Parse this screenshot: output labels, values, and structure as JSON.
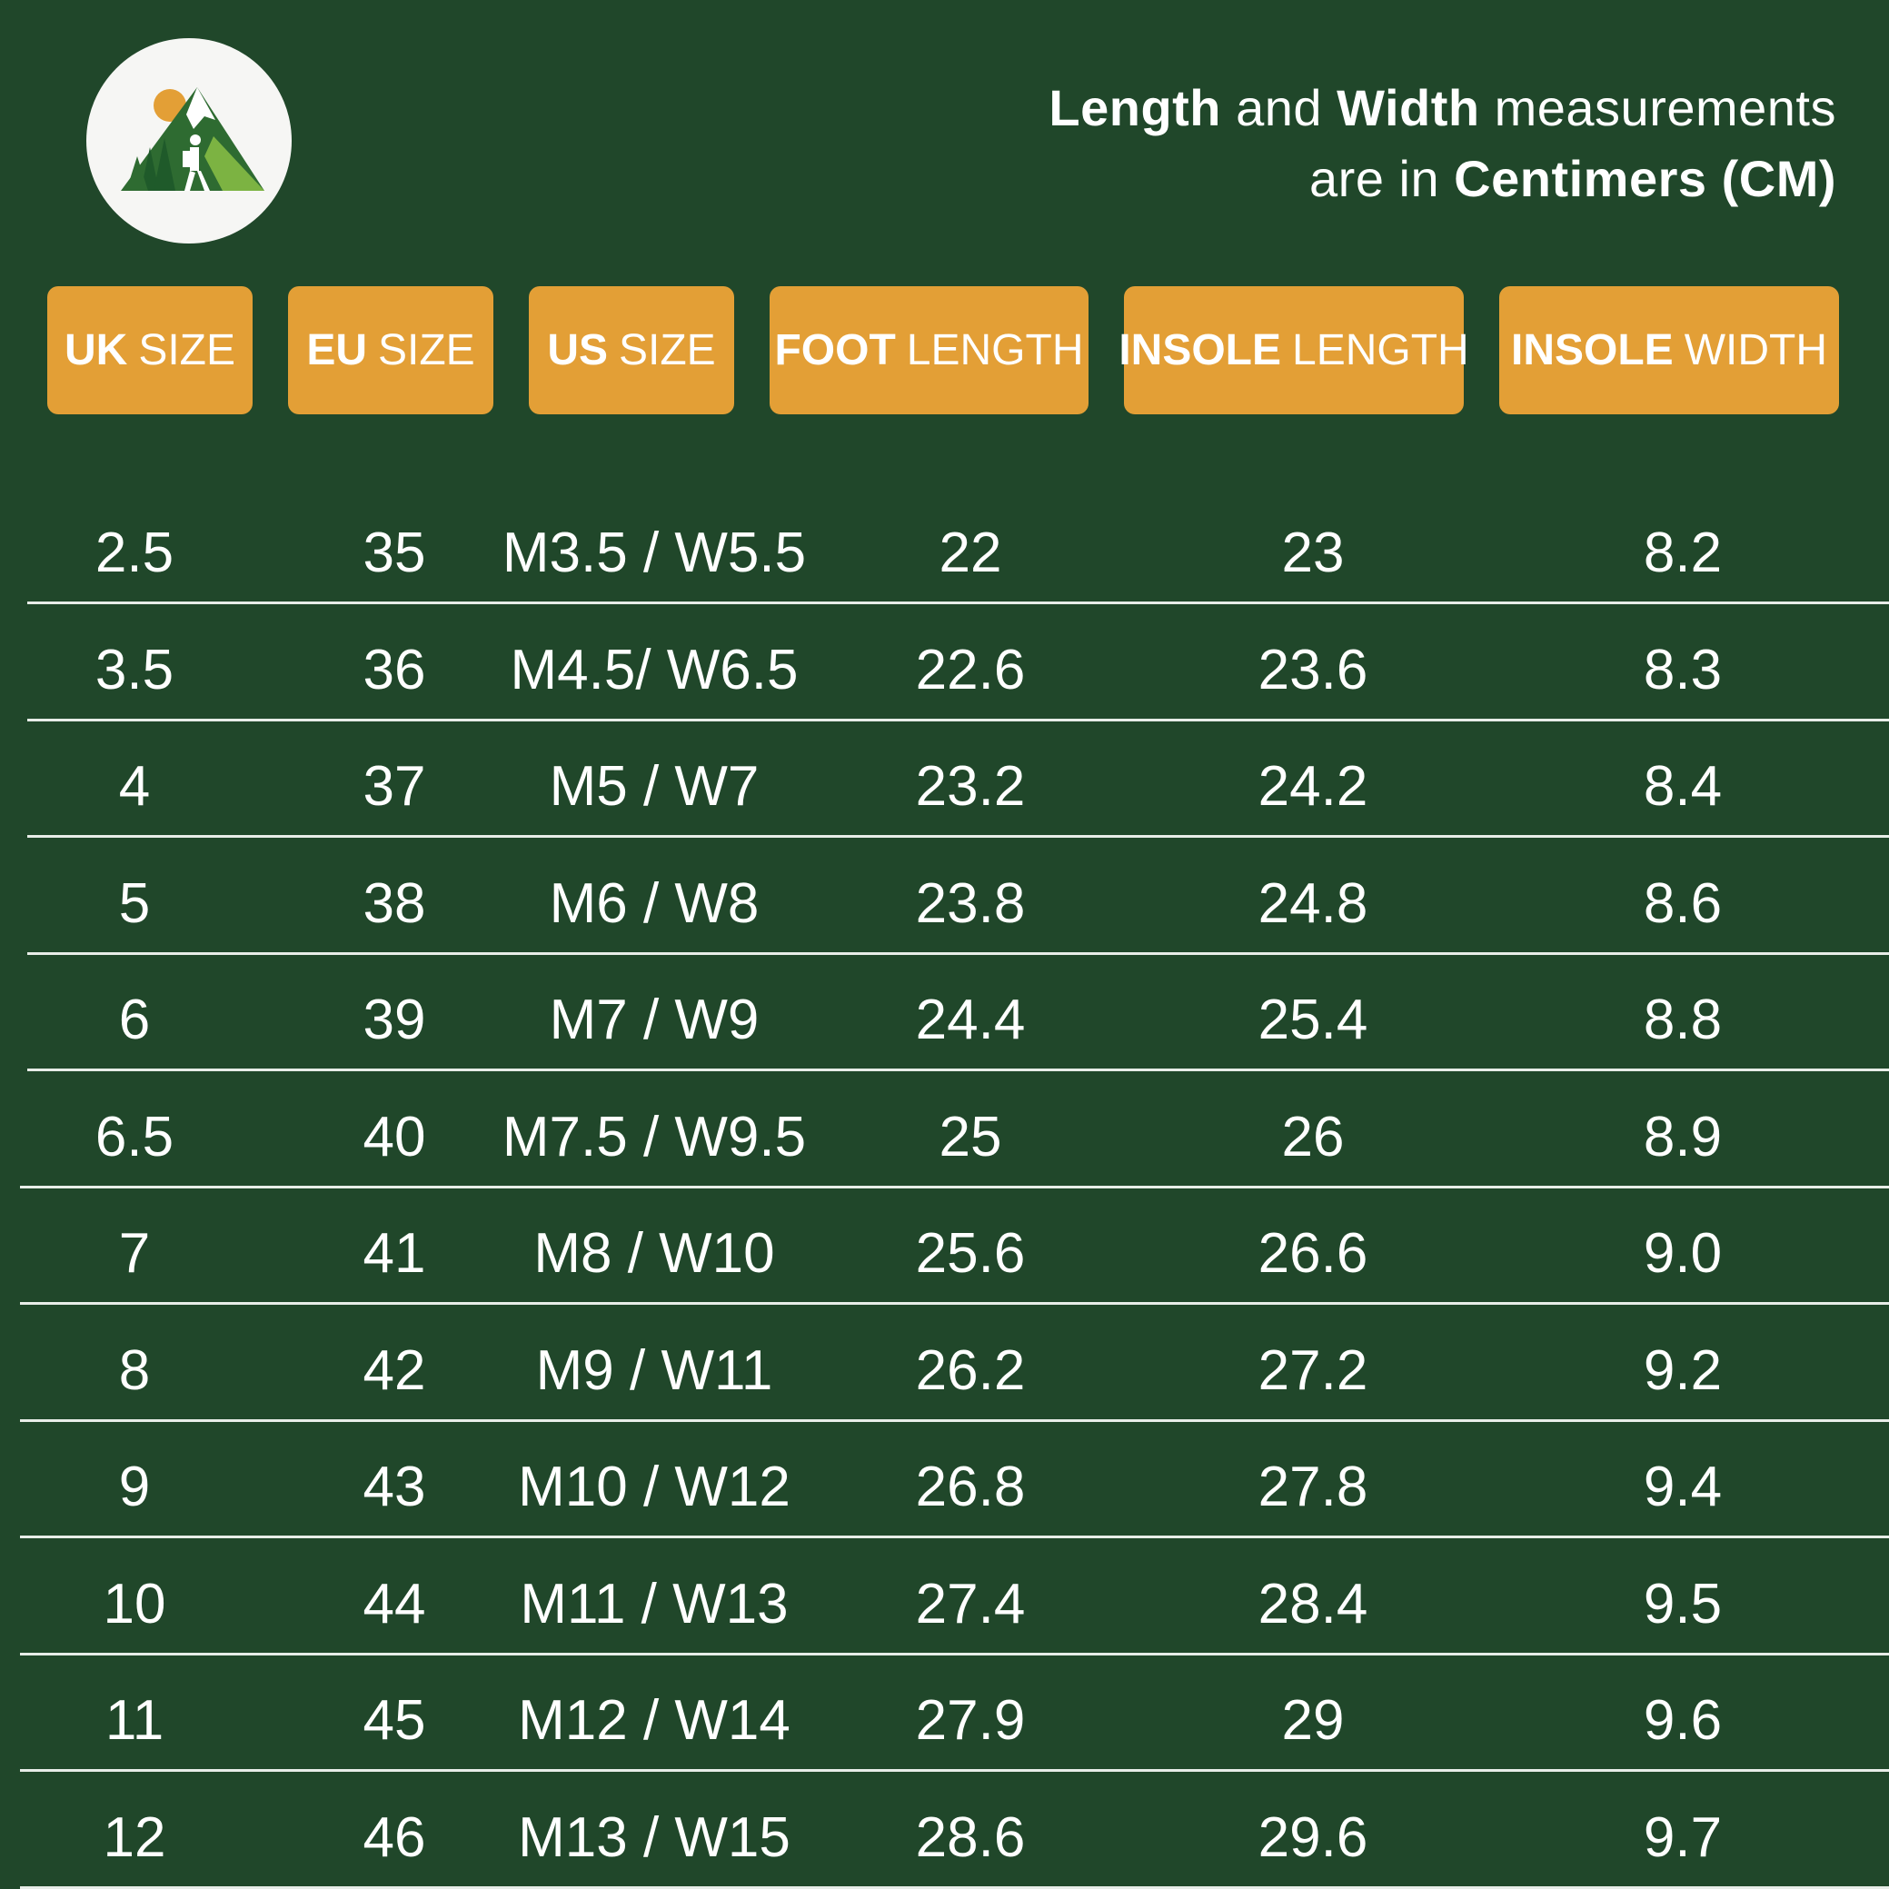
{
  "note": {
    "w1": "Length",
    "w2": " and ",
    "w3": "Width",
    "w4": " measurements",
    "w5": "are in ",
    "w6": "Centimers (CM)"
  },
  "headers": [
    {
      "bold": "UK",
      "rest": "SIZE"
    },
    {
      "bold": "EU",
      "rest": "SIZE"
    },
    {
      "bold": "US",
      "rest": "SIZE"
    },
    {
      "bold": "FOOT",
      "rest": "LENGTH"
    },
    {
      "bold": "INSOLE",
      "rest": "LENGTH"
    },
    {
      "bold": "INSOLE",
      "rest": "WIDTH"
    }
  ],
  "rows": [
    [
      "2.5",
      "35",
      "M3.5 / W5.5",
      "22",
      "23",
      "8.2"
    ],
    [
      "3.5",
      "36",
      "M4.5/ W6.5",
      "22.6",
      "23.6",
      "8.3"
    ],
    [
      "4",
      "37",
      "M5 / W7",
      "23.2",
      "24.2",
      "8.4"
    ],
    [
      "5",
      "38",
      "M6 / W8",
      "23.8",
      "24.8",
      "8.6"
    ],
    [
      "6",
      "39",
      "M7 / W9",
      "24.4",
      "25.4",
      "8.8"
    ],
    [
      "6.5",
      "40",
      "M7.5 / W9.5",
      "25",
      "26",
      "8.9"
    ],
    [
      "7",
      "41",
      "M8 / W10",
      "25.6",
      "26.6",
      "9.0"
    ],
    [
      "8",
      "42",
      "M9 / W11",
      "26.2",
      "27.2",
      "9.2"
    ],
    [
      "9",
      "43",
      "M10 / W12",
      "26.8",
      "27.8",
      "9.4"
    ],
    [
      "10",
      "44",
      "M11 / W13",
      "27.4",
      "28.4",
      "9.5"
    ],
    [
      "11",
      "45",
      "M12 / W14",
      "27.9",
      "29",
      "9.6"
    ],
    [
      "12",
      "46",
      "M13 / W15",
      "28.6",
      "29.6",
      "9.7"
    ]
  ],
  "colors": {
    "background": "#20472a",
    "header_fill": "#e39f36",
    "rule": "#e8ede8"
  },
  "icons": {
    "logo": "mountain-hiker-logo-icon"
  }
}
